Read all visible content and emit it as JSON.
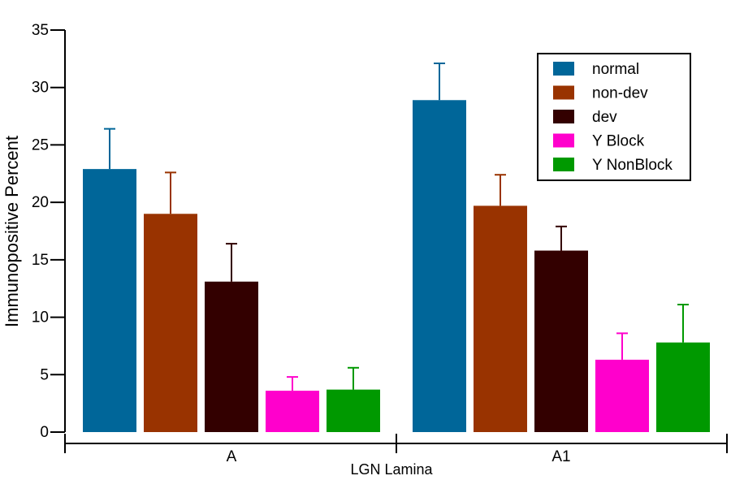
{
  "chart_data": {
    "type": "bar",
    "title": "",
    "xlabel": "LGN Lamina",
    "ylabel": "Immunopositive Percent",
    "ylim": [
      0,
      35
    ],
    "yticks": [
      0,
      5,
      10,
      15,
      20,
      25,
      30,
      35
    ],
    "categories": [
      "A",
      "A1"
    ],
    "legend_position": "top-right",
    "series": [
      {
        "name": "normal",
        "color": "#006699",
        "values": [
          22.9,
          28.9
        ],
        "errors": [
          3.5,
          3.2
        ]
      },
      {
        "name": "non-dev",
        "color": "#993300",
        "values": [
          19.0,
          19.7
        ],
        "errors": [
          3.6,
          2.7
        ]
      },
      {
        "name": "dev",
        "color": "#330000",
        "values": [
          13.1,
          15.8
        ],
        "errors": [
          3.3,
          2.1
        ]
      },
      {
        "name": "Y Block",
        "color": "#ff00cc",
        "values": [
          3.6,
          6.3
        ],
        "errors": [
          1.2,
          2.3
        ]
      },
      {
        "name": "Y NonBlock",
        "color": "#009900",
        "values": [
          3.7,
          7.8
        ],
        "errors": [
          1.9,
          3.3
        ]
      }
    ]
  }
}
